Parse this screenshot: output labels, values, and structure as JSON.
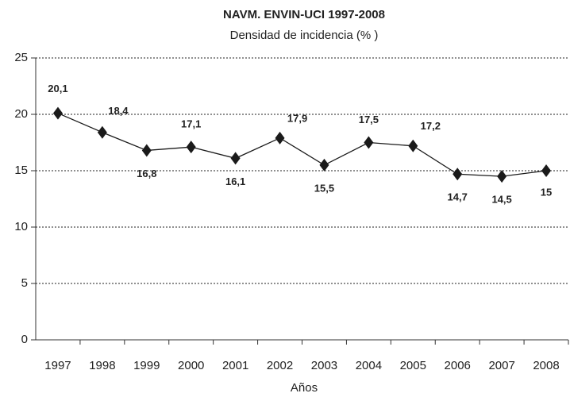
{
  "chart_data": {
    "type": "line",
    "title": "NAVM. ENVIN-UCI 1997-2008",
    "subtitle": "Densidad de incidencia (% )",
    "x_label": "Años",
    "categories": [
      "1997",
      "1998",
      "1999",
      "2000",
      "2001",
      "2002",
      "2003",
      "2004",
      "2005",
      "2006",
      "2007",
      "2008"
    ],
    "values": [
      20.1,
      18.4,
      16.8,
      17.1,
      16.1,
      17.9,
      15.5,
      17.5,
      17.2,
      14.7,
      14.5,
      15
    ],
    "value_labels": [
      "20,1",
      "18,4",
      "16,8",
      "17,1",
      "16,1",
      "17,9",
      "15,5",
      "17,5",
      "17,2",
      "14,7",
      "14,5",
      "15"
    ],
    "color": "#1a1a1a",
    "ylim": [
      0,
      25
    ],
    "yticks": [
      0,
      5,
      10,
      15,
      20,
      25
    ],
    "grid": true
  }
}
